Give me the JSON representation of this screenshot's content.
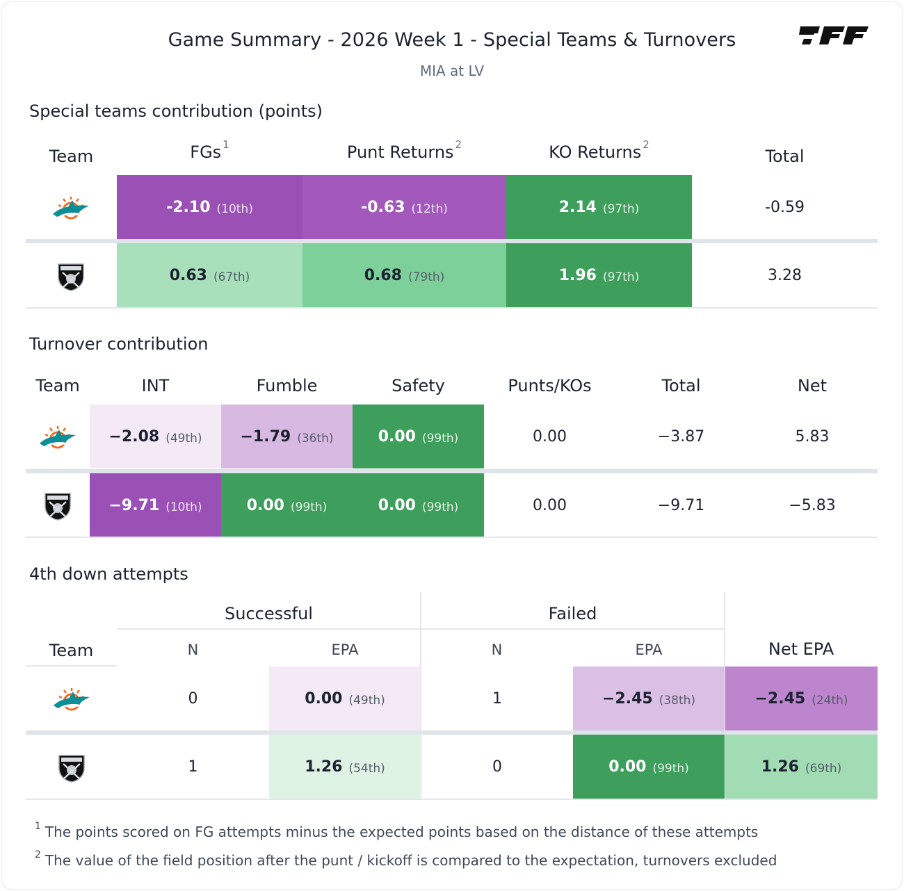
{
  "header": {
    "title": "Game Summary - 2026 Week 1 - Special Teams & Turnovers",
    "subtitle": "MIA at LV",
    "logo_text": "PFF"
  },
  "colors": {
    "dark_purple": "#9b50b6",
    "mid_purple": "#a259bb",
    "light_purple": "#d7b9e2",
    "pale_purple": "#f3eaf6",
    "purple_24": "#bc85cd",
    "purple_38": "#dbbfe4",
    "dark_green": "#3d9f5b",
    "green_79": "#7ed09a",
    "green_67": "#a8e0bb",
    "green_69": "#a1dcb4",
    "pale_green": "#dff3e5"
  },
  "teams": [
    {
      "abbr": "MIA",
      "logo": "dolphins-logo"
    },
    {
      "abbr": "LV",
      "logo": "raiders-logo"
    }
  ],
  "special_teams": {
    "title": "Special teams contribution (points)",
    "headers": {
      "team": "Team",
      "fgs": "FGs",
      "fgs_note": "1",
      "punt": "Punt Returns",
      "punt_note": "2",
      "ko": "KO Returns",
      "ko_note": "2",
      "total": "Total"
    },
    "rows": [
      {
        "fgs": "-2.10",
        "fgs_rank": "(10th)",
        "punt": "-0.63",
        "punt_rank": "(12th)",
        "ko": "2.14",
        "ko_rank": "(97th)",
        "total": "-0.59"
      },
      {
        "fgs": "0.63",
        "fgs_rank": "(67th)",
        "punt": "0.68",
        "punt_rank": "(79th)",
        "ko": "1.96",
        "ko_rank": "(97th)",
        "total": "3.28"
      }
    ]
  },
  "turnovers": {
    "title": "Turnover contribution",
    "headers": {
      "team": "Team",
      "int": "INT",
      "fumble": "Fumble",
      "safety": "Safety",
      "punts": "Punts/KOs",
      "total": "Total",
      "net": "Net"
    },
    "rows": [
      {
        "int": "−2.08",
        "int_rank": "(49th)",
        "fumble": "−1.79",
        "fumble_rank": "(36th)",
        "safety": "0.00",
        "safety_rank": "(99th)",
        "punts": "0.00",
        "total": "−3.87",
        "net": "5.83"
      },
      {
        "int": "−9.71",
        "int_rank": "(10th)",
        "fumble": "0.00",
        "fumble_rank": "(99th)",
        "safety": "0.00",
        "safety_rank": "(99th)",
        "punts": "0.00",
        "total": "−9.71",
        "net": "−5.83"
      }
    ]
  },
  "fourth_down": {
    "title": "4th down attempts",
    "headers": {
      "successful": "Successful",
      "failed": "Failed",
      "team": "Team",
      "n": "N",
      "epa": "EPA",
      "net_epa": "Net EPA"
    },
    "rows": [
      {
        "s_n": "0",
        "s_epa": "0.00",
        "s_epa_rank": "(49th)",
        "f_n": "1",
        "f_epa": "−2.45",
        "f_epa_rank": "(38th)",
        "net": "−2.45",
        "net_rank": "(24th)"
      },
      {
        "s_n": "1",
        "s_epa": "1.26",
        "s_epa_rank": "(54th)",
        "f_n": "0",
        "f_epa": "0.00",
        "f_epa_rank": "(99th)",
        "net": "1.26",
        "net_rank": "(69th)"
      }
    ]
  },
  "footnotes": [
    {
      "mark": "1",
      "text": "The points scored on FG attempts minus the expected points based on the distance of these attempts"
    },
    {
      "mark": "2",
      "text": "The value of the field position after the punt / kickoff is compared to the expectation, turnovers excluded"
    }
  ]
}
